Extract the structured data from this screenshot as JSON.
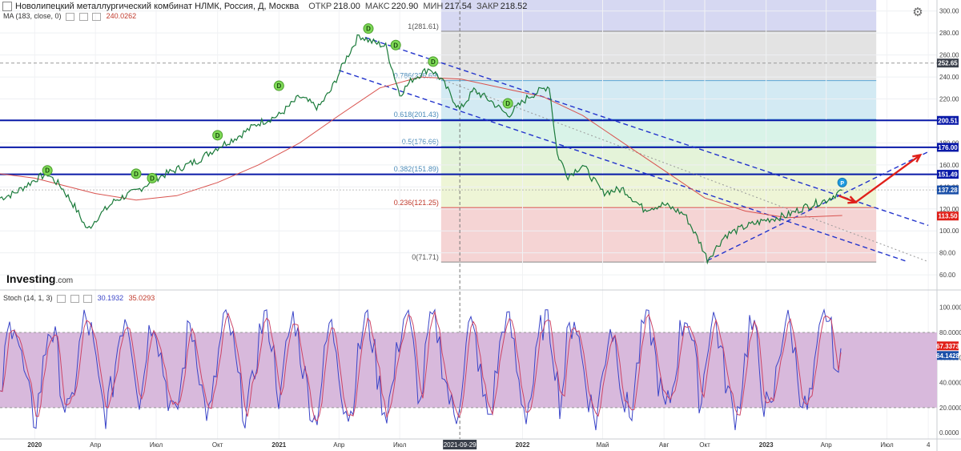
{
  "header": {
    "title": "Новолипецкий металлургический комбинат НЛМК, Россия, Д, Москва",
    "open_label": "ОТКР",
    "open": "218.00",
    "high_label": "МАКС",
    "high": "220.90",
    "low_label": "МИН",
    "low": "217.54",
    "close_label": "ЗАКР",
    "close": "218.52"
  },
  "indicators": {
    "ma_label": "MA (183, close, 0)",
    "ma_value": "240.0262",
    "stoch_label": "Stoch (14, 1, 3)",
    "stoch_k": "30.1932",
    "stoch_d": "35.0293"
  },
  "logo": {
    "main": "Investing",
    "suffix": ".com"
  },
  "colors": {
    "price": "#1a7a3a",
    "ma": "#d9534f",
    "hline": "#0a1aa8",
    "fib_line": "#5ba7d6",
    "stoch_k": "#3a44c8",
    "stoch_d": "#cc4466",
    "stoch_band": "#d8b9dc",
    "arrow": "#e0201a"
  },
  "chart_data": {
    "type": "line",
    "price_axis": {
      "ylim": [
        55,
        310
      ],
      "ticks": [
        60,
        80,
        100,
        120,
        140,
        160,
        180,
        200,
        220,
        240,
        260,
        280,
        300
      ],
      "tick_labels": [
        "60.00",
        "80.00",
        "100.00",
        "120.00",
        "140.00",
        "160.00",
        "180.00",
        "200.00",
        "220.00",
        "240.00",
        "260.00",
        "280.00",
        "300.00"
      ]
    },
    "time_axis": {
      "xlim": [
        "2019-11-10",
        "2023-09-14"
      ],
      "ticks": [
        {
          "date": "2020-01-01",
          "label": "2020",
          "bold": true
        },
        {
          "date": "2020-04-01",
          "label": "Апр"
        },
        {
          "date": "2020-07-01",
          "label": "Июл"
        },
        {
          "date": "2020-10-01",
          "label": "Окт"
        },
        {
          "date": "2021-01-01",
          "label": "2021",
          "bold": true
        },
        {
          "date": "2021-04-01",
          "label": "Апр"
        },
        {
          "date": "2021-07-01",
          "label": "Июл"
        },
        {
          "date": "2022-01-01",
          "label": "2022",
          "bold": true
        },
        {
          "date": "2022-05-01",
          "label": "Май"
        },
        {
          "date": "2022-08-01",
          "label": "Авг"
        },
        {
          "date": "2022-10-01",
          "label": "Окт"
        },
        {
          "date": "2023-01-01",
          "label": "2023",
          "bold": true
        },
        {
          "date": "2023-04-01",
          "label": "Апр"
        },
        {
          "date": "2023-07-01",
          "label": "Июл"
        },
        {
          "date": "2023-09-01",
          "label": "4"
        }
      ],
      "cursor": {
        "date": "2021-09-29",
        "label": "2021-09-29"
      }
    },
    "price_series": {
      "name": "НЛМК",
      "points": [
        [
          "2019-11-10",
          130
        ],
        [
          "2019-12-01",
          134
        ],
        [
          "2020-01-05",
          148
        ],
        [
          "2020-01-20",
          152
        ],
        [
          "2020-02-10",
          140
        ],
        [
          "2020-03-01",
          122
        ],
        [
          "2020-03-20",
          101
        ],
        [
          "2020-04-05",
          113
        ],
        [
          "2020-05-01",
          128
        ],
        [
          "2020-06-01",
          136
        ],
        [
          "2020-07-01",
          148
        ],
        [
          "2020-08-01",
          156
        ],
        [
          "2020-09-01",
          164
        ],
        [
          "2020-10-01",
          176
        ],
        [
          "2020-11-01",
          186
        ],
        [
          "2020-12-01",
          198
        ],
        [
          "2021-01-01",
          205
        ],
        [
          "2021-02-01",
          222
        ],
        [
          "2021-03-01",
          212
        ],
        [
          "2021-03-20",
          228
        ],
        [
          "2021-04-10",
          255
        ],
        [
          "2021-05-01",
          278
        ],
        [
          "2021-05-20",
          272
        ],
        [
          "2021-06-10",
          268
        ],
        [
          "2021-07-01",
          224
        ],
        [
          "2021-07-20",
          238
        ],
        [
          "2021-08-15",
          248
        ],
        [
          "2021-09-01",
          238
        ],
        [
          "2021-09-29",
          210
        ],
        [
          "2021-10-20",
          228
        ],
        [
          "2021-11-15",
          218
        ],
        [
          "2021-12-10",
          205
        ],
        [
          "2022-01-10",
          222
        ],
        [
          "2022-02-10",
          232
        ],
        [
          "2022-02-22",
          170
        ],
        [
          "2022-03-10",
          150
        ],
        [
          "2022-04-01",
          160
        ],
        [
          "2022-05-01",
          135
        ],
        [
          "2022-06-01",
          138
        ],
        [
          "2022-07-01",
          120
        ],
        [
          "2022-08-01",
          124
        ],
        [
          "2022-09-01",
          115
        ],
        [
          "2022-09-25",
          88
        ],
        [
          "2022-10-05",
          74
        ],
        [
          "2022-11-01",
          96
        ],
        [
          "2022-12-01",
          104
        ],
        [
          "2023-01-01",
          110
        ],
        [
          "2023-02-01",
          114
        ],
        [
          "2023-03-01",
          122
        ],
        [
          "2023-04-01",
          128
        ],
        [
          "2023-04-25",
          137
        ]
      ]
    },
    "ma_series": {
      "name": "MA (183, close, 0)",
      "points": [
        [
          "2019-11-10",
          152
        ],
        [
          "2020-01-01",
          148
        ],
        [
          "2020-04-01",
          134
        ],
        [
          "2020-06-01",
          128
        ],
        [
          "2020-08-01",
          132
        ],
        [
          "2020-10-01",
          144
        ],
        [
          "2020-12-01",
          160
        ],
        [
          "2021-02-01",
          180
        ],
        [
          "2021-04-01",
          205
        ],
        [
          "2021-06-01",
          230
        ],
        [
          "2021-08-01",
          240
        ],
        [
          "2021-10-01",
          238
        ],
        [
          "2021-12-01",
          230
        ],
        [
          "2022-02-01",
          222
        ],
        [
          "2022-04-01",
          205
        ],
        [
          "2022-06-01",
          180
        ],
        [
          "2022-08-01",
          155
        ],
        [
          "2022-10-01",
          130
        ],
        [
          "2022-12-01",
          118
        ],
        [
          "2023-02-01",
          112
        ],
        [
          "2023-04-25",
          114
        ]
      ]
    },
    "horizontal_lines": [
      {
        "value": 200.51,
        "label": "200.51"
      },
      {
        "value": 176.0,
        "label": "176.00"
      },
      {
        "value": 151.49,
        "label": "151.49"
      }
    ],
    "price_tags": [
      {
        "value": 252.65,
        "label": "252.65",
        "style": "dark"
      },
      {
        "value": 137.28,
        "label": "137.28",
        "style": "blue"
      },
      {
        "value": 113.5,
        "label": "113.50",
        "style": "red"
      }
    ],
    "fibonacci": {
      "start": "2021-09-01",
      "end": "2023-06-15",
      "top_color": "#d6d8f2",
      "levels": [
        {
          "ratio": "1",
          "value": 281.61,
          "label": "1(281.61)",
          "color": "#e3e3e3"
        },
        {
          "ratio": "0.786",
          "value": 236.69,
          "label": "0.786(236.69)",
          "color": "#d3eaf3"
        },
        {
          "ratio": "0.618",
          "value": 201.43,
          "label": "0.618(201.43)",
          "color": "#d9f3e8"
        },
        {
          "ratio": "0.5",
          "value": 176.66,
          "label": "0.5(176.66)",
          "color": "#e4f3d9"
        },
        {
          "ratio": "0.382",
          "value": 151.89,
          "label": "0.382(151.89)",
          "color": "#eef5d6"
        },
        {
          "ratio": "0.236",
          "value": 121.25,
          "label": "0.236(121.25)",
          "color": "#f5d4d4"
        },
        {
          "ratio": "0",
          "value": 71.71,
          "label": "0(71.71)",
          "color": "#f5d4d4"
        }
      ]
    },
    "dividend_markers": [
      {
        "date": "2020-01-20",
        "value": 155
      },
      {
        "date": "2020-06-01",
        "value": 152
      },
      {
        "date": "2020-06-25",
        "value": 148
      },
      {
        "date": "2020-10-01",
        "value": 187
      },
      {
        "date": "2021-01-01",
        "value": 232
      },
      {
        "date": "2021-05-15",
        "value": 284
      },
      {
        "date": "2021-06-25",
        "value": 269
      },
      {
        "date": "2021-08-20",
        "value": 254
      },
      {
        "date": "2021-12-10",
        "value": 216
      }
    ],
    "marker_labels": {
      "dividend": "D",
      "report": "P"
    },
    "report_marker": {
      "date": "2023-04-25",
      "value": 144
    },
    "trend_lines": [
      {
        "from": [
          "2021-05-10",
          276
        ],
        "to": [
          "2023-09-01",
          105
        ]
      },
      {
        "from": [
          "2021-04-01",
          246
        ],
        "to": [
          "2023-08-01",
          72
        ]
      },
      {
        "from": [
          "2022-10-05",
          73
        ],
        "to": [
          "2023-09-01",
          172
        ]
      }
    ],
    "dotted_line": {
      "from": [
        "2021-09-01",
        238
      ],
      "to": [
        "2023-09-01",
        72
      ]
    },
    "forecast_arrows": [
      {
        "from": [
          "2023-04-20",
          132
        ],
        "to": [
          "2023-05-15",
          126
        ]
      },
      {
        "from": [
          "2023-05-15",
          126
        ],
        "to": [
          "2023-08-20",
          169
        ]
      }
    ],
    "stochastic": {
      "ylim": [
        -5,
        110
      ],
      "ticks": [
        0,
        20,
        40,
        60,
        80,
        100
      ],
      "tick_labels": [
        "0.0000",
        "20.0000",
        "40.0000",
        "60.0000",
        "80.0000",
        "100.0000"
      ],
      "band": [
        20,
        80
      ],
      "k_last": "67.3373",
      "d_last": "64.1428",
      "k_last_value": 67.34,
      "d_last_value": 64.14,
      "cycle_values": [
        20,
        75,
        95,
        60,
        30,
        8,
        45,
        88,
        70,
        25,
        12,
        55,
        92,
        80,
        40,
        15,
        35,
        78,
        98,
        65
      ]
    }
  }
}
